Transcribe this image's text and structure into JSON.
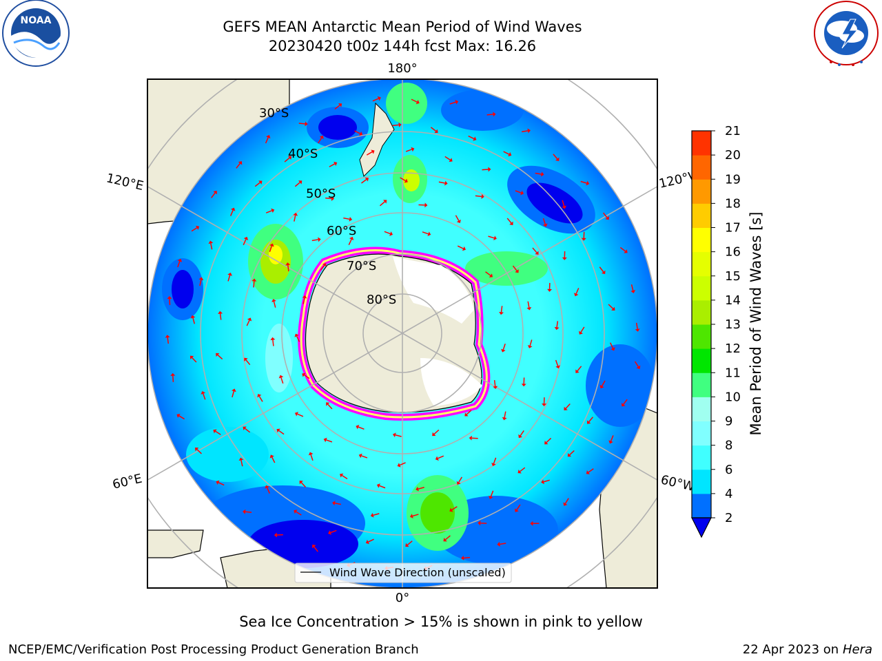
{
  "title": {
    "line1": "GEFS MEAN Antarctic Mean Period of Wind Waves",
    "line2": "20230420 t00z 144h fcst   Max: 16.26"
  },
  "logos": {
    "noara_text": "NOAA",
    "noaa_ring": "NATIONAL OCEANIC AND ATMOSPHERIC ADMINISTRATION · U.S. DEPARTMENT OF COMMERCE",
    "nws_ring": "NATIONAL WEATHER SERVICE"
  },
  "map": {
    "projection": "south-polar-stereographic",
    "longitude_labels": {
      "top": "180°",
      "bottom": "0°",
      "left_upper": "120°E",
      "left_lower": "60°E",
      "right_upper": "120°W",
      "right_lower": "60°W"
    },
    "latitude_labels": [
      "30°S",
      "40°S",
      "50°S",
      "60°S",
      "70°S",
      "80°S"
    ],
    "legend_label": "Wind Wave Direction (unscaled)",
    "arrow_color": "#ff0000",
    "land_color": "#eeecd9",
    "ice_colors": [
      "#ff00ff",
      "#ffff00"
    ]
  },
  "colorbar": {
    "label": "Mean Period of Wind Waves [s]",
    "ticks": [
      "2",
      "4",
      "6",
      "8",
      "9",
      "10",
      "11",
      "12",
      "13",
      "14",
      "15",
      "16",
      "17",
      "18",
      "19",
      "20",
      "21"
    ],
    "colors": [
      "#0070ff",
      "#00e5ff",
      "#40ffff",
      "#80ffff",
      "#a0fff0",
      "#40ff80",
      "#00e600",
      "#4ee600",
      "#aaee00",
      "#ccff00",
      "#e5ff00",
      "#ffff00",
      "#ffcc00",
      "#ff9900",
      "#ff6600",
      "#ff3300",
      "#ff0000"
    ],
    "under_color": "#0000ee"
  },
  "caption": "Sea Ice Concentration > 15% is shown in pink to yellow",
  "footer": {
    "left": "NCEP/EMC/Verification Post Processing Product Generation Branch",
    "right_date": "22 Apr 2023 on ",
    "right_host": "Hera"
  }
}
